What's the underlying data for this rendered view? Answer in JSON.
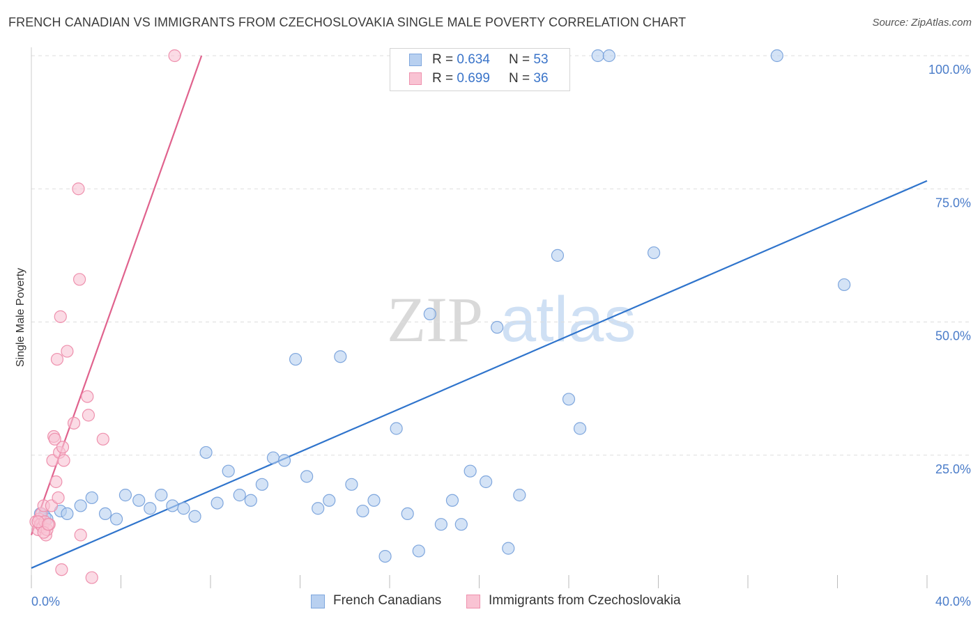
{
  "title": "FRENCH CANADIAN VS IMMIGRANTS FROM CZECHOSLOVAKIA SINGLE MALE POVERTY CORRELATION CHART",
  "source": "Source: ZipAtlas.com",
  "legend": {
    "row1": {
      "r_label": "R =",
      "r_value": "0.634",
      "n_label": "N =",
      "n_value": "53"
    },
    "row2": {
      "r_label": "R =",
      "r_value": "0.699",
      "n_label": "N =",
      "n_value": "36"
    }
  },
  "bottom_legend": {
    "series1": "French Canadians",
    "series2": "Immigrants from Czechoslovakia"
  },
  "watermark": {
    "zip": "ZIP",
    "atlas": "atlas"
  },
  "colors": {
    "blue_fill": "#b8d0f0",
    "blue_stroke": "#7ea6dd",
    "blue_line": "#2f74cc",
    "pink_fill": "#f9c3d3",
    "pink_stroke": "#ee90ad",
    "pink_line": "#e0628d",
    "tick_text": "#4a7cc9",
    "grid": "#dddddd"
  },
  "chart_data": {
    "type": "scatter",
    "title": "FRENCH CANADIAN VS IMMIGRANTS FROM CZECHOSLOVAKIA SINGLE MALE POVERTY CORRELATION CHART",
    "xlabel": "",
    "ylabel": "Single Male Poverty",
    "xlim": [
      0,
      40
    ],
    "ylim": [
      0,
      105
    ],
    "x_tick_labels": {
      "left": "0.0%",
      "right": "40.0%"
    },
    "y_ticks": [
      {
        "value": 25,
        "label": "25.0%"
      },
      {
        "value": 50,
        "label": "50.0%"
      },
      {
        "value": 75,
        "label": "75.0%"
      },
      {
        "value": 100,
        "label": "100.0%"
      }
    ],
    "grid": true,
    "legend_position": "top-center",
    "series": [
      {
        "name": "French Canadians",
        "color": "blue",
        "points": [
          [
            0.6,
            13.5
          ],
          [
            0.7,
            13
          ],
          [
            1.3,
            14.5
          ],
          [
            1.6,
            14
          ],
          [
            2.2,
            15.5
          ],
          [
            2.7,
            17
          ],
          [
            3.3,
            14
          ],
          [
            3.8,
            13
          ],
          [
            4.2,
            17.5
          ],
          [
            4.8,
            16.5
          ],
          [
            5.3,
            15
          ],
          [
            5.8,
            17.5
          ],
          [
            6.3,
            15.5
          ],
          [
            6.8,
            15
          ],
          [
            7.3,
            13.5
          ],
          [
            7.8,
            25.5
          ],
          [
            8.3,
            16
          ],
          [
            8.8,
            22
          ],
          [
            9.3,
            17.5
          ],
          [
            9.8,
            16.5
          ],
          [
            10.3,
            19.5
          ],
          [
            10.8,
            24.5
          ],
          [
            11.3,
            24
          ],
          [
            11.8,
            43
          ],
          [
            12.3,
            21
          ],
          [
            12.8,
            15
          ],
          [
            13.3,
            16.5
          ],
          [
            13.8,
            43.5
          ],
          [
            14.3,
            19.5
          ],
          [
            14.8,
            14.5
          ],
          [
            15.3,
            16.5
          ],
          [
            15.8,
            6
          ],
          [
            16.3,
            30
          ],
          [
            16.8,
            14
          ],
          [
            17.3,
            7
          ],
          [
            17.8,
            51.5
          ],
          [
            18.3,
            12
          ],
          [
            18.8,
            16.5
          ],
          [
            19.2,
            12
          ],
          [
            19.6,
            22
          ],
          [
            20.3,
            20
          ],
          [
            20.8,
            49
          ],
          [
            21.3,
            7.5
          ],
          [
            21.8,
            17.5
          ],
          [
            23.5,
            62.5
          ],
          [
            24,
            35.5
          ],
          [
            24.5,
            30
          ],
          [
            25.3,
            100
          ],
          [
            25.8,
            100
          ],
          [
            27.8,
            63
          ],
          [
            33.3,
            100
          ],
          [
            36.3,
            57
          ],
          [
            0.4,
            14
          ]
        ],
        "trend": {
          "x": [
            0,
            40
          ],
          "y": [
            3.8,
            76.5
          ]
        }
      },
      {
        "name": "Immigrants from Czechoslovakia",
        "color": "pink",
        "points": [
          [
            0.2,
            12.5
          ],
          [
            0.3,
            11
          ],
          [
            0.35,
            13
          ],
          [
            0.4,
            12
          ],
          [
            0.45,
            14
          ],
          [
            0.5,
            11.5
          ],
          [
            0.55,
            15.5
          ],
          [
            0.6,
            12.5
          ],
          [
            0.65,
            10
          ],
          [
            0.7,
            11
          ],
          [
            0.8,
            12
          ],
          [
            0.9,
            15.5
          ],
          [
            0.95,
            24
          ],
          [
            1.0,
            28.5
          ],
          [
            1.05,
            28
          ],
          [
            1.1,
            20
          ],
          [
            1.15,
            43
          ],
          [
            1.2,
            17
          ],
          [
            1.25,
            25.5
          ],
          [
            1.3,
            51
          ],
          [
            1.4,
            26.5
          ],
          [
            1.45,
            24
          ],
          [
            1.6,
            44.5
          ],
          [
            1.9,
            31
          ],
          [
            2.1,
            75
          ],
          [
            2.15,
            58
          ],
          [
            2.2,
            10
          ],
          [
            2.5,
            36
          ],
          [
            2.55,
            32.5
          ],
          [
            2.7,
            2
          ],
          [
            3.2,
            28
          ],
          [
            6.4,
            100
          ],
          [
            1.35,
            3.5
          ],
          [
            0.3,
            12.5
          ],
          [
            0.55,
            10.5
          ],
          [
            0.75,
            12
          ]
        ],
        "trend": {
          "x": [
            0,
            7.6
          ],
          "y": [
            10,
            100
          ]
        }
      }
    ]
  }
}
